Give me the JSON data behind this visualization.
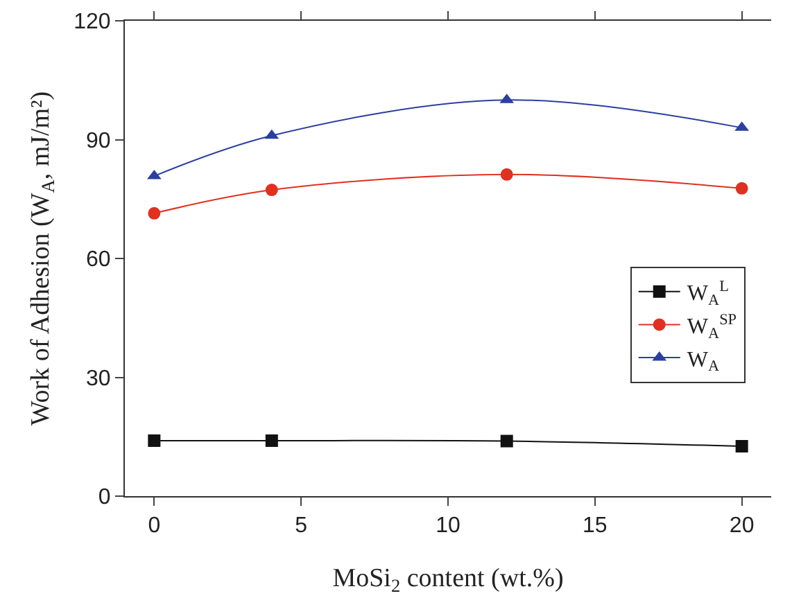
{
  "chart_data": {
    "type": "line",
    "xlabel": "MoSi$_{2}$ content (wt.%)",
    "ylabel": "Work of Adhesion (W$_{A}$, mJ/m²)",
    "x": [
      0,
      4,
      12,
      20
    ],
    "series": [
      {
        "name": "W$_{A}$$^{L}$",
        "color": "#111111",
        "marker": "square",
        "values": [
          14,
          14,
          13.9,
          12.6
        ]
      },
      {
        "name": "W$_{A}$$^{SP}$",
        "color": "#e03020",
        "marker": "circle",
        "values": [
          71.4,
          77.3,
          81.2,
          77.7
        ]
      },
      {
        "name": "W$_{A}$",
        "color": "#2a3fa0",
        "marker": "triangle",
        "values": [
          80.8,
          91,
          100,
          93
        ]
      }
    ],
    "xlim": [
      -1,
      21
    ],
    "xticks": [
      0,
      5,
      10,
      15,
      20
    ],
    "ylim": [
      0,
      120
    ],
    "yticks": [
      0,
      30,
      60,
      90,
      120
    ],
    "grid": false,
    "legend": "right",
    "line_style": "solid"
  }
}
